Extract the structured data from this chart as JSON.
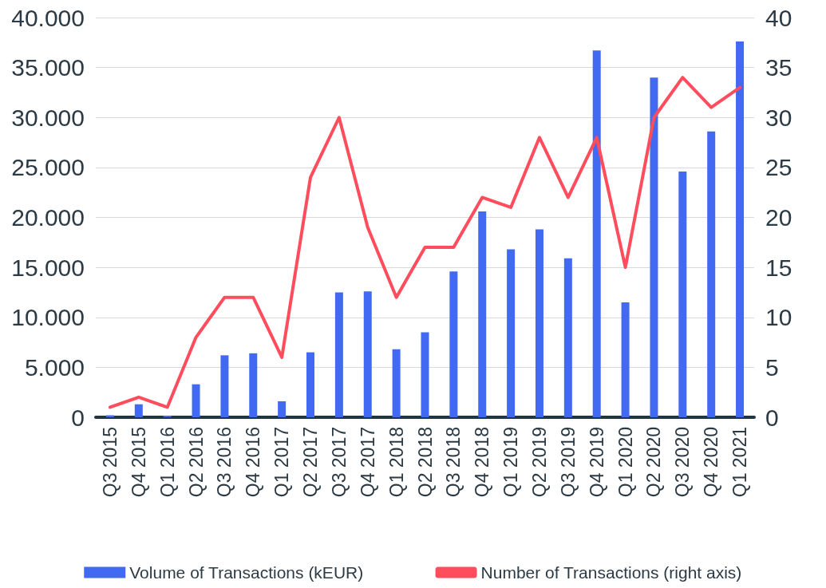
{
  "chart_data": {
    "type": "bar",
    "categories": [
      "Q3 2015",
      "Q4 2015",
      "Q1 2016",
      "Q2 2016",
      "Q3 2016",
      "Q4 2016",
      "Q1 2017",
      "Q2 2017",
      "Q3 2017",
      "Q4 2017",
      "Q1 2018",
      "Q2 2018",
      "Q3 2018",
      "Q4 2018",
      "Q1 2019",
      "Q2 2019",
      "Q3 2019",
      "Q4 2019",
      "Q1 2020",
      "Q2 2020",
      "Q3 2020",
      "Q4 2020",
      "Q1 2021"
    ],
    "series": [
      {
        "name": "Volume of Transactions (kEUR)",
        "color": "#4169f2",
        "values": [
          200,
          1300,
          150,
          3300,
          6200,
          6400,
          1600,
          6500,
          12500,
          12600,
          6800,
          8500,
          14600,
          20600,
          16800,
          18800,
          15900,
          36700,
          11500,
          34000,
          24600,
          28600,
          37600
        ]
      },
      {
        "name": "Number of Transactions (right axis)",
        "type": "line",
        "axis": "y2",
        "color": "#ff4d5e",
        "values": [
          1,
          2,
          1,
          8,
          12,
          12,
          6,
          24,
          30,
          19,
          12,
          17,
          17,
          22,
          21,
          28,
          22,
          28,
          15,
          30,
          34,
          31,
          33
        ]
      }
    ],
    "ylim": [
      0,
      40000
    ],
    "yticks": [
      {
        "value": 0,
        "label": "0"
      },
      {
        "value": 5000,
        "label": "5.000"
      },
      {
        "value": 10000,
        "label": "10.000"
      },
      {
        "value": 15000,
        "label": "15.000"
      },
      {
        "value": 20000,
        "label": "20.000"
      },
      {
        "value": 25000,
        "label": "25.000"
      },
      {
        "value": 30000,
        "label": "30.000"
      },
      {
        "value": 35000,
        "label": "35.000"
      },
      {
        "value": 40000,
        "label": "40.000"
      }
    ],
    "y2lim": [
      0,
      40
    ],
    "y2ticks": [
      0,
      5,
      10,
      15,
      20,
      25,
      30,
      35,
      40
    ],
    "grid": "y",
    "legend": "bottom",
    "marker": "none",
    "line_style": "solid"
  }
}
